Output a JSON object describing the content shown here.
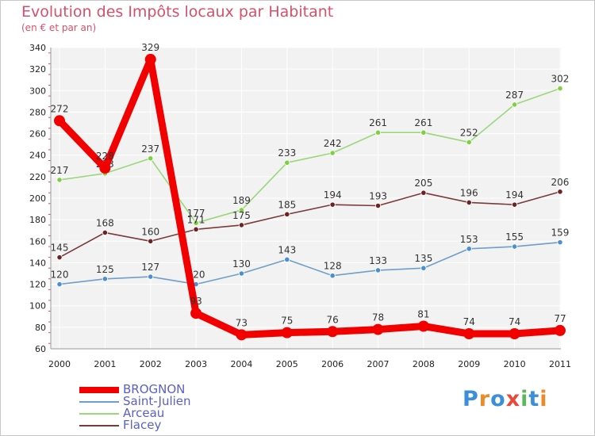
{
  "header": {
    "title": "Evolution des Impôts locaux par Habitant",
    "subtitle": "(en € et par an)"
  },
  "logo": {
    "text": "Proxiti",
    "letter_colors": [
      "#3a8fd8",
      "#e98b2a",
      "#3a8fd8",
      "#e84a3a",
      "#5cb85c",
      "#3a8fd8",
      "#e98b2a"
    ]
  },
  "chart_data": {
    "type": "line",
    "title": "Evolution des Impôts locaux par Habitant",
    "subtitle": "(en € et par an)",
    "x": [
      "2000",
      "2001",
      "2002",
      "2003",
      "2004",
      "2005",
      "2006",
      "2007",
      "2008",
      "2009",
      "2010",
      "2011"
    ],
    "ylim": [
      60,
      340
    ],
    "yticks": [
      60,
      80,
      100,
      120,
      140,
      160,
      180,
      200,
      220,
      240,
      260,
      280,
      300,
      320,
      340
    ],
    "grid": true,
    "legend_position": "bottom-left",
    "series": [
      {
        "name": "BROGNON",
        "color": "#f20000",
        "emphasis": true,
        "values": [
          272,
          228,
          329,
          93,
          73,
          75,
          76,
          78,
          81,
          74,
          74,
          77
        ]
      },
      {
        "name": "Saint-Julien",
        "color": "#6f9ec8",
        "emphasis": false,
        "values": [
          120,
          125,
          127,
          120,
          130,
          143,
          128,
          133,
          135,
          153,
          155,
          159
        ]
      },
      {
        "name": "Arceau",
        "color": "#9ad77a",
        "emphasis": false,
        "values": [
          217,
          223,
          237,
          177,
          189,
          233,
          242,
          261,
          261,
          252,
          287,
          302
        ]
      },
      {
        "name": "Flacey",
        "color": "#7a3a3a",
        "emphasis": false,
        "values": [
          145,
          168,
          160,
          171,
          175,
          185,
          194,
          193,
          205,
          196,
          194,
          206
        ]
      }
    ],
    "point_colors": {
      "Saint-Julien": "#4a8fd0",
      "Arceau": "#7fd040",
      "Flacey": "#6b2424"
    }
  }
}
